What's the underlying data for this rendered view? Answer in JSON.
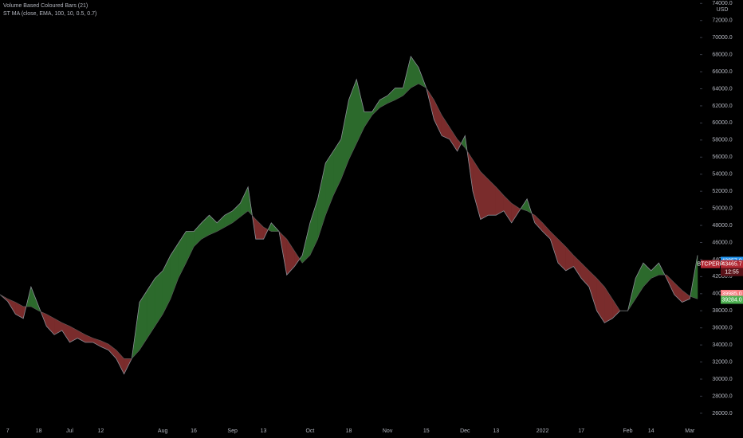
{
  "chart_data": {
    "type": "band",
    "indicators": [
      "Volume Based Coloured Bars (21)",
      "ST MA (close, EMA, 100, 10, 0.5, 0.7)"
    ],
    "categories": [
      null,
      "7",
      null,
      null,
      null,
      "18",
      null,
      null,
      null,
      "Jul",
      null,
      null,
      null,
      "12",
      null,
      null,
      null,
      null,
      null,
      null,
      null,
      "Aug",
      null,
      null,
      null,
      "16",
      null,
      null,
      null,
      null,
      "Sep",
      null,
      null,
      null,
      "13",
      null,
      null,
      null,
      null,
      null,
      "Oct",
      null,
      null,
      null,
      null,
      "18",
      null,
      null,
      null,
      null,
      "Nov",
      null,
      null,
      null,
      null,
      "15",
      null,
      null,
      null,
      null,
      "Dec",
      null,
      null,
      null,
      "13",
      null,
      null,
      null,
      null,
      null,
      "2022",
      null,
      null,
      null,
      null,
      "17",
      null,
      null,
      null,
      null,
      null,
      "Feb",
      null,
      null,
      "14",
      null,
      null,
      null,
      null,
      "Mar",
      null
    ],
    "series": [
      {
        "color": "#8a8d96",
        "values": [
          39900,
          39100,
          37600,
          37100,
          40800,
          38500,
          36200,
          35200,
          35700,
          34300,
          34800,
          34300,
          34300,
          33800,
          33400,
          32400,
          30600,
          32400,
          39000,
          40400,
          41800,
          42700,
          44500,
          45900,
          47300,
          47300,
          48300,
          49200,
          48300,
          49200,
          49700,
          50600,
          52500,
          46400,
          46400,
          48300,
          47300,
          42200,
          43200,
          44500,
          48300,
          51100,
          55300,
          56700,
          58100,
          62700,
          65100,
          61300,
          61300,
          62700,
          63200,
          64100,
          64100,
          67800,
          66500,
          64100,
          60400,
          58500,
          58100,
          56700,
          58500,
          52000,
          48700,
          49200,
          49200,
          49700,
          48300,
          49700,
          51100,
          48300,
          47300,
          46400,
          43600,
          42700,
          43200,
          41800,
          40800,
          38000,
          36600,
          37100,
          38000,
          38000,
          41800,
          43600,
          42700,
          43600,
          41800,
          39900,
          39000,
          39400,
          44500
        ]
      },
      {
        "color": "#5a5a5a",
        "values": [
          39900,
          39400,
          39000,
          38500,
          38500,
          38000,
          37600,
          37100,
          36600,
          36200,
          35700,
          35200,
          34800,
          34500,
          34100,
          33400,
          32400,
          32400,
          33400,
          34800,
          36200,
          37600,
          39400,
          41800,
          43600,
          45500,
          46400,
          46900,
          47300,
          47800,
          48300,
          49000,
          49700,
          48700,
          47800,
          47300,
          47300,
          46400,
          45000,
          43600,
          44500,
          46400,
          49200,
          51500,
          53400,
          55700,
          57600,
          59500,
          60900,
          61800,
          62300,
          62700,
          63200,
          64100,
          64600,
          64100,
          62700,
          60900,
          59500,
          58100,
          57100,
          55700,
          54300,
          53400,
          52500,
          51500,
          50600,
          50000,
          49700,
          49200,
          48300,
          47300,
          46400,
          45500,
          44500,
          43600,
          42700,
          41800,
          40800,
          39400,
          38000,
          38000,
          39400,
          40800,
          41800,
          42200,
          42200,
          41300,
          40400,
          39700,
          39400
        ]
      }
    ],
    "band_colors": {
      "above": "#2c6a2c",
      "below": "#7a2c2c"
    },
    "ylim": [
      24500,
      74400
    ],
    "yticks": [
      {
        "value": 26000,
        "label": "26000.0"
      },
      {
        "value": 28000,
        "label": "28000.0"
      },
      {
        "value": 30000,
        "label": "30000.0"
      },
      {
        "value": 32000,
        "label": "32000.0"
      },
      {
        "value": 34000,
        "label": "34000.0"
      },
      {
        "value": 36000,
        "label": "36000.0"
      },
      {
        "value": 38000,
        "label": "38000.0"
      },
      {
        "value": 40000,
        "label": "40000.0"
      },
      {
        "value": 42000,
        "label": "42000.0"
      },
      {
        "value": 44000,
        "label": "44000.0"
      },
      {
        "value": 46000,
        "label": "46000.0"
      },
      {
        "value": 48000,
        "label": "48000.0"
      },
      {
        "value": 50000,
        "label": "50000.0"
      },
      {
        "value": 52000,
        "label": "52000.0"
      },
      {
        "value": 54000,
        "label": "54000.0"
      },
      {
        "value": 56000,
        "label": "56000.0"
      },
      {
        "value": 58000,
        "label": "58000.0"
      },
      {
        "value": 60000,
        "label": "60000.0"
      },
      {
        "value": 62000,
        "label": "62000.0"
      },
      {
        "value": 64000,
        "label": "64000.0"
      },
      {
        "value": 66000,
        "label": "66000.0"
      },
      {
        "value": 68000,
        "label": "68000.0"
      },
      {
        "value": 70000,
        "label": "70000.0"
      },
      {
        "value": 72000,
        "label": "72000.0"
      },
      {
        "value": 74000,
        "label": "74000.0"
      }
    ],
    "currency": "USD",
    "price_labels": [
      {
        "value": 43857,
        "label": "43857.0",
        "color": "#2196f3"
      },
      {
        "value": 43465.7,
        "label": "43465.7",
        "color": "#b22833",
        "symbol": "BTCPERP",
        "countdown": "12:55"
      },
      {
        "value": 39985,
        "label": "39985.0",
        "color": "#f77c80"
      },
      {
        "value": 39284,
        "label": "39284.0",
        "color": "#4caf50"
      }
    ]
  }
}
